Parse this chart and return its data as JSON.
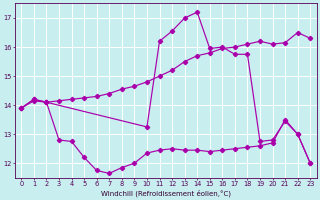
{
  "xlabel": "Windchill (Refroidissement éolien,°C)",
  "bg_color": "#c8eef0",
  "line_color": "#aa00aa",
  "grid_color": "#ffffff",
  "xlim": [
    -0.5,
    23.5
  ],
  "ylim": [
    11.5,
    17.5
  ],
  "yticks": [
    12,
    13,
    14,
    15,
    16,
    17
  ],
  "xticks": [
    0,
    1,
    2,
    3,
    4,
    5,
    6,
    7,
    8,
    9,
    10,
    11,
    12,
    13,
    14,
    15,
    16,
    17,
    18,
    19,
    20,
    21,
    22,
    23
  ],
  "line1_x": [
    0,
    1,
    2,
    3,
    4,
    5,
    6,
    7,
    8,
    9,
    10,
    11,
    12,
    13,
    14,
    15,
    16,
    17,
    18,
    19,
    20,
    21,
    22,
    23
  ],
  "line1_y": [
    13.9,
    14.15,
    14.1,
    14.15,
    14.2,
    14.25,
    14.3,
    14.4,
    14.55,
    14.65,
    14.8,
    15.0,
    15.2,
    15.5,
    15.7,
    15.8,
    15.95,
    16.0,
    16.1,
    16.2,
    16.1,
    16.15,
    16.5,
    16.3
  ],
  "line2_x": [
    0,
    1,
    2,
    3,
    4,
    5,
    6,
    7,
    8,
    9,
    10,
    11,
    12,
    13,
    14,
    15,
    16,
    17,
    18,
    19,
    20,
    21,
    22,
    23
  ],
  "line2_y": [
    13.9,
    14.2,
    14.1,
    12.8,
    12.75,
    12.2,
    11.75,
    11.65,
    11.85,
    12.0,
    12.35,
    12.45,
    12.5,
    12.45,
    12.45,
    12.4,
    12.45,
    12.5,
    12.55,
    12.6,
    12.7,
    13.5,
    13.0,
    12.0
  ],
  "line3_x": [
    0,
    1,
    2,
    10,
    11,
    12,
    13,
    14,
    15,
    16,
    17,
    18,
    19,
    20,
    21,
    22,
    23
  ],
  "line3_y": [
    13.9,
    14.2,
    14.1,
    13.25,
    16.2,
    16.55,
    17.0,
    17.2,
    15.95,
    16.0,
    15.75,
    15.75,
    12.75,
    12.8,
    13.45,
    13.0,
    12.0
  ]
}
